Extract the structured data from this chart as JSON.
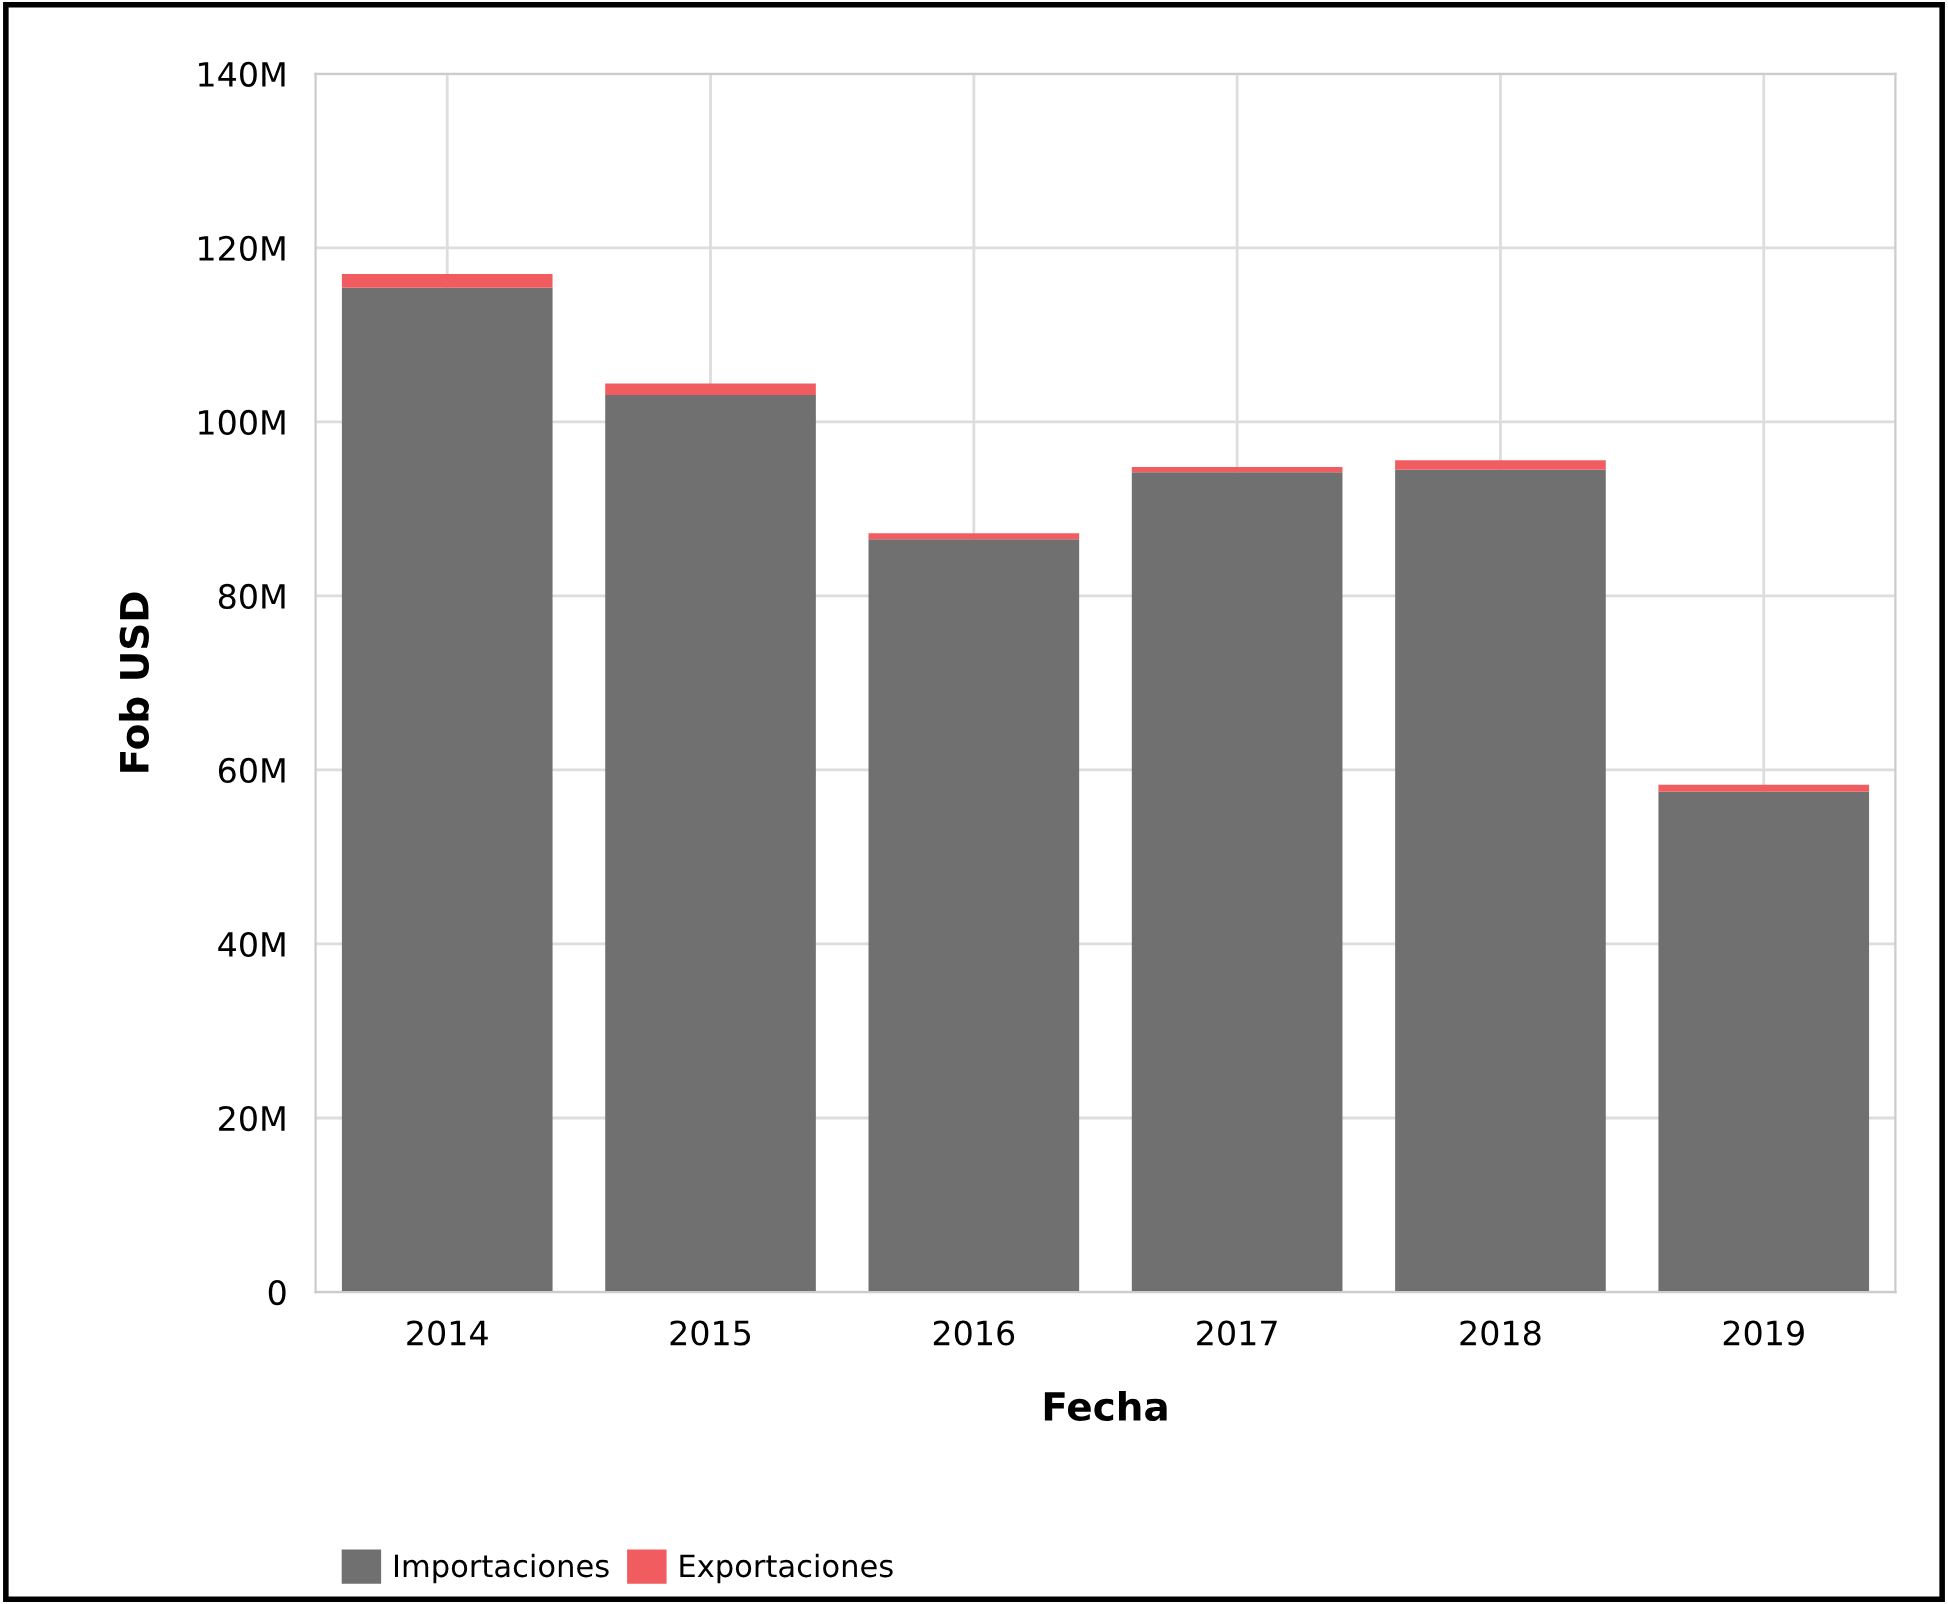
{
  "chart_data": {
    "type": "bar",
    "stacked": true,
    "xlabel": "Fecha",
    "ylabel": "Fob USD",
    "categories": [
      "2014",
      "2015",
      "2016",
      "2017",
      "2018",
      "2019"
    ],
    "series": [
      {
        "name": "Importaciones",
        "color": "#707070",
        "values": [
          115.4,
          103.1,
          86.5,
          94.2,
          94.5,
          57.5
        ]
      },
      {
        "name": "Exportaciones",
        "color": "#f15c61",
        "values": [
          1.6,
          1.3,
          0.7,
          0.6,
          1.1,
          0.8
        ]
      }
    ],
    "ylim": [
      0,
      140
    ],
    "yticks": [
      {
        "value": 0,
        "label": "0"
      },
      {
        "value": 20,
        "label": "20M"
      },
      {
        "value": 40,
        "label": "40M"
      },
      {
        "value": 60,
        "label": "60M"
      },
      {
        "value": 80,
        "label": "80M"
      },
      {
        "value": 100,
        "label": "100M"
      },
      {
        "value": 120,
        "label": "120M"
      },
      {
        "value": 140,
        "label": "140M"
      }
    ],
    "grid": true,
    "legend": "bottom left"
  }
}
